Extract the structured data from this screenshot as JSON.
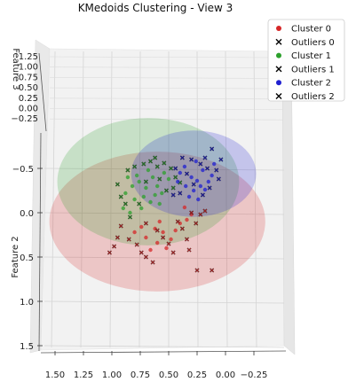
{
  "chart_data": {
    "type": "scatter",
    "title": "KMedoids Clustering - View 3",
    "axis_labels": {
      "top_axis": "Feature 3",
      "left_axis": "Feature 2"
    },
    "top_axis_ticks": [
      "1.25",
      "1.00",
      "0.75",
      "0.50",
      "0.25",
      "0.00",
      "−0.25"
    ],
    "left_axis_ticks": [
      "−0.5",
      "0.0",
      "0.5",
      "1.0",
      "1.5"
    ],
    "bottom_axis_ticks": [
      "1.50",
      "1.25",
      "1.00",
      "0.75",
      "0.50",
      "0.25",
      "0.00",
      "−0.25"
    ],
    "legend": [
      "Cluster 0",
      "Outliers 0",
      "Cluster 1",
      "Outliers 1",
      "Cluster 2",
      "Outliers 2"
    ],
    "legend_position": "top-right",
    "clusters": [
      {
        "color": "#d62728",
        "points": [
          [
            0.62,
            0.18
          ],
          [
            0.7,
            0.28
          ],
          [
            0.55,
            0.22
          ],
          [
            0.48,
            0.3
          ],
          [
            0.36,
            -0.06
          ],
          [
            0.3,
            0.02
          ],
          [
            0.4,
            0.12
          ],
          [
            0.58,
            0.1
          ],
          [
            0.74,
            0.16
          ],
          [
            0.66,
            0.42
          ],
          [
            0.52,
            0.4
          ],
          [
            0.44,
            0.2
          ],
          [
            0.34,
            0.08
          ],
          [
            0.8,
            0.22
          ],
          [
            0.6,
            0.34
          ]
        ],
        "outliers": [
          [
            1.02,
            0.45
          ],
          [
            0.98,
            0.38
          ],
          [
            0.95,
            0.28
          ],
          [
            0.92,
            0.15
          ],
          [
            0.85,
            0.3
          ],
          [
            0.78,
            0.36
          ],
          [
            0.74,
            0.45
          ],
          [
            0.7,
            0.5
          ],
          [
            0.64,
            0.56
          ],
          [
            0.55,
            0.28
          ],
          [
            0.5,
            0.35
          ],
          [
            0.46,
            0.45
          ],
          [
            0.42,
            0.1
          ],
          [
            0.38,
            0.18
          ],
          [
            0.34,
            0.3
          ],
          [
            0.32,
            0.42
          ],
          [
            0.3,
            0.0
          ],
          [
            0.26,
            0.12
          ],
          [
            0.22,
            0.02
          ],
          [
            0.18,
            -0.02
          ],
          [
            0.25,
            0.65
          ],
          [
            0.12,
            0.65
          ],
          [
            0.6,
            0.2
          ],
          [
            0.7,
            0.12
          ]
        ]
      },
      {
        "color": "#2ca02c",
        "points": [
          [
            0.82,
            -0.3
          ],
          [
            0.88,
            -0.22
          ],
          [
            0.76,
            -0.35
          ],
          [
            0.7,
            -0.28
          ],
          [
            0.64,
            -0.4
          ],
          [
            0.6,
            -0.3
          ],
          [
            0.56,
            -0.22
          ],
          [
            0.5,
            -0.38
          ],
          [
            0.8,
            -0.15
          ],
          [
            0.72,
            -0.18
          ],
          [
            0.66,
            -0.12
          ],
          [
            0.9,
            -0.05
          ],
          [
            0.84,
            0.0
          ],
          [
            0.74,
            -0.05
          ],
          [
            0.62,
            -0.2
          ],
          [
            0.54,
            -0.45
          ],
          [
            0.68,
            -0.48
          ],
          [
            0.78,
            -0.42
          ],
          [
            0.86,
            -0.4
          ],
          [
            0.58,
            -0.1
          ]
        ],
        "outliers": [
          [
            0.95,
            -0.32
          ],
          [
            0.92,
            -0.18
          ],
          [
            0.86,
            -0.48
          ],
          [
            0.8,
            -0.52
          ],
          [
            0.72,
            -0.55
          ],
          [
            0.66,
            -0.58
          ],
          [
            0.6,
            -0.52
          ],
          [
            0.54,
            -0.56
          ],
          [
            0.48,
            -0.5
          ],
          [
            0.44,
            -0.4
          ],
          [
            0.46,
            -0.28
          ],
          [
            0.4,
            -0.34
          ],
          [
            0.88,
            -0.1
          ],
          [
            0.76,
            -0.1
          ],
          [
            0.84,
            0.05
          ],
          [
            0.7,
            -0.35
          ],
          [
            0.62,
            -0.62
          ],
          [
            0.58,
            -0.38
          ],
          [
            0.52,
            -0.25
          ]
        ]
      },
      {
        "color": "#1f1fd0",
        "points": [
          [
            0.3,
            -0.4
          ],
          [
            0.25,
            -0.36
          ],
          [
            0.22,
            -0.3
          ],
          [
            0.18,
            -0.26
          ],
          [
            0.28,
            -0.25
          ],
          [
            0.35,
            -0.3
          ],
          [
            0.15,
            -0.35
          ],
          [
            0.4,
            -0.45
          ],
          [
            0.2,
            -0.48
          ],
          [
            0.12,
            -0.42
          ],
          [
            0.32,
            -0.18
          ],
          [
            0.24,
            -0.15
          ],
          [
            0.42,
            -0.35
          ],
          [
            0.1,
            -0.55
          ],
          [
            0.26,
            -0.58
          ],
          [
            0.36,
            -0.52
          ]
        ],
        "outliers": [
          [
            0.12,
            -0.72
          ],
          [
            0.08,
            -0.48
          ],
          [
            0.06,
            -0.38
          ],
          [
            0.16,
            -0.5
          ],
          [
            0.22,
            -0.55
          ],
          [
            0.3,
            -0.6
          ],
          [
            0.38,
            -0.62
          ],
          [
            0.44,
            -0.5
          ],
          [
            0.34,
            -0.44
          ],
          [
            0.28,
            -0.32
          ],
          [
            0.2,
            -0.2
          ],
          [
            0.14,
            -0.28
          ],
          [
            0.4,
            -0.22
          ],
          [
            0.46,
            -0.2
          ],
          [
            0.18,
            -0.62
          ],
          [
            0.04,
            -0.6
          ]
        ]
      }
    ],
    "cluster_spheres": [
      {
        "cluster": 0,
        "center": [
          0.6,
          0.1
        ],
        "rx": 0.95,
        "ry": 0.68,
        "color": "#d62728"
      },
      {
        "cluster": 1,
        "center": [
          0.68,
          -0.35
        ],
        "rx": 0.8,
        "ry": 0.62,
        "color": "#2ca02c"
      },
      {
        "cluster": 2,
        "center": [
          0.28,
          -0.44
        ],
        "rx": 0.55,
        "ry": 0.42,
        "color": "#1f1fd0"
      }
    ]
  }
}
